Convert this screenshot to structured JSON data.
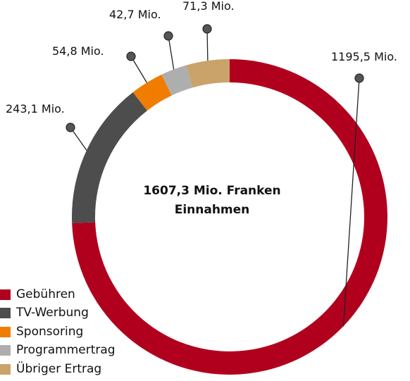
{
  "chart_data": {
    "type": "pie",
    "center_text": [
      "1607,3 Mio. Franken",
      "Einnahmen"
    ],
    "total": 1607.3,
    "unit": "Mio.",
    "categories": [
      "Gebühren",
      "TV-Werbung",
      "Sponsoring",
      "Programmertrag",
      "Übriger Ertrag"
    ],
    "values": [
      1195.5,
      243.1,
      54.8,
      42.7,
      71.3
    ],
    "value_labels": [
      "1195,5 Mio.",
      "243,1 Mio.",
      "54,8 Mio.",
      "42,7 Mio.",
      "71,3 Mio."
    ],
    "colors": [
      "#b1001e",
      "#4d4d4d",
      "#f07d00",
      "#aeaeae",
      "#c9a36a"
    ],
    "legend_position": "bottom-left"
  }
}
